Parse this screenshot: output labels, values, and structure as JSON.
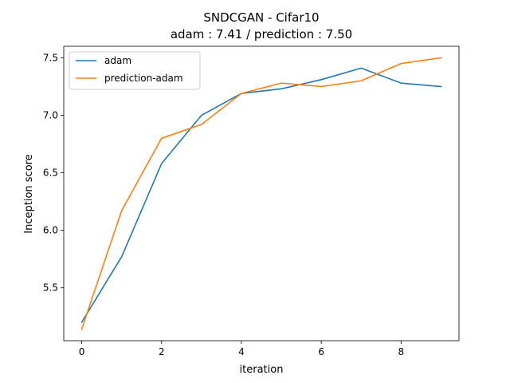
{
  "chart_data": {
    "type": "line",
    "title_line1": "SNDCGAN - Cifar10",
    "title_line2": "adam : 7.41 /  prediction : 7.50",
    "xlabel": "iteration",
    "ylabel": "Inception score",
    "xlim": [
      -0.45,
      9.45
    ],
    "ylim": [
      5.04,
      7.6
    ],
    "xticks": [
      0,
      2,
      4,
      6,
      8
    ],
    "yticks": [
      5.5,
      6.0,
      6.5,
      7.0,
      7.5
    ],
    "x": [
      0,
      1,
      2,
      3,
      4,
      5,
      6,
      7,
      8,
      9
    ],
    "series": [
      {
        "name": "adam",
        "color": "#1f77b4",
        "values": [
          5.2,
          5.77,
          6.58,
          7.0,
          7.19,
          7.23,
          7.31,
          7.41,
          7.28,
          7.25
        ]
      },
      {
        "name": "prediction-adam",
        "color": "#ff7f0e",
        "values": [
          5.14,
          6.17,
          6.8,
          6.92,
          7.19,
          7.28,
          7.25,
          7.3,
          7.45,
          7.5
        ]
      }
    ],
    "legend_position": "upper-left",
    "grid": false
  }
}
